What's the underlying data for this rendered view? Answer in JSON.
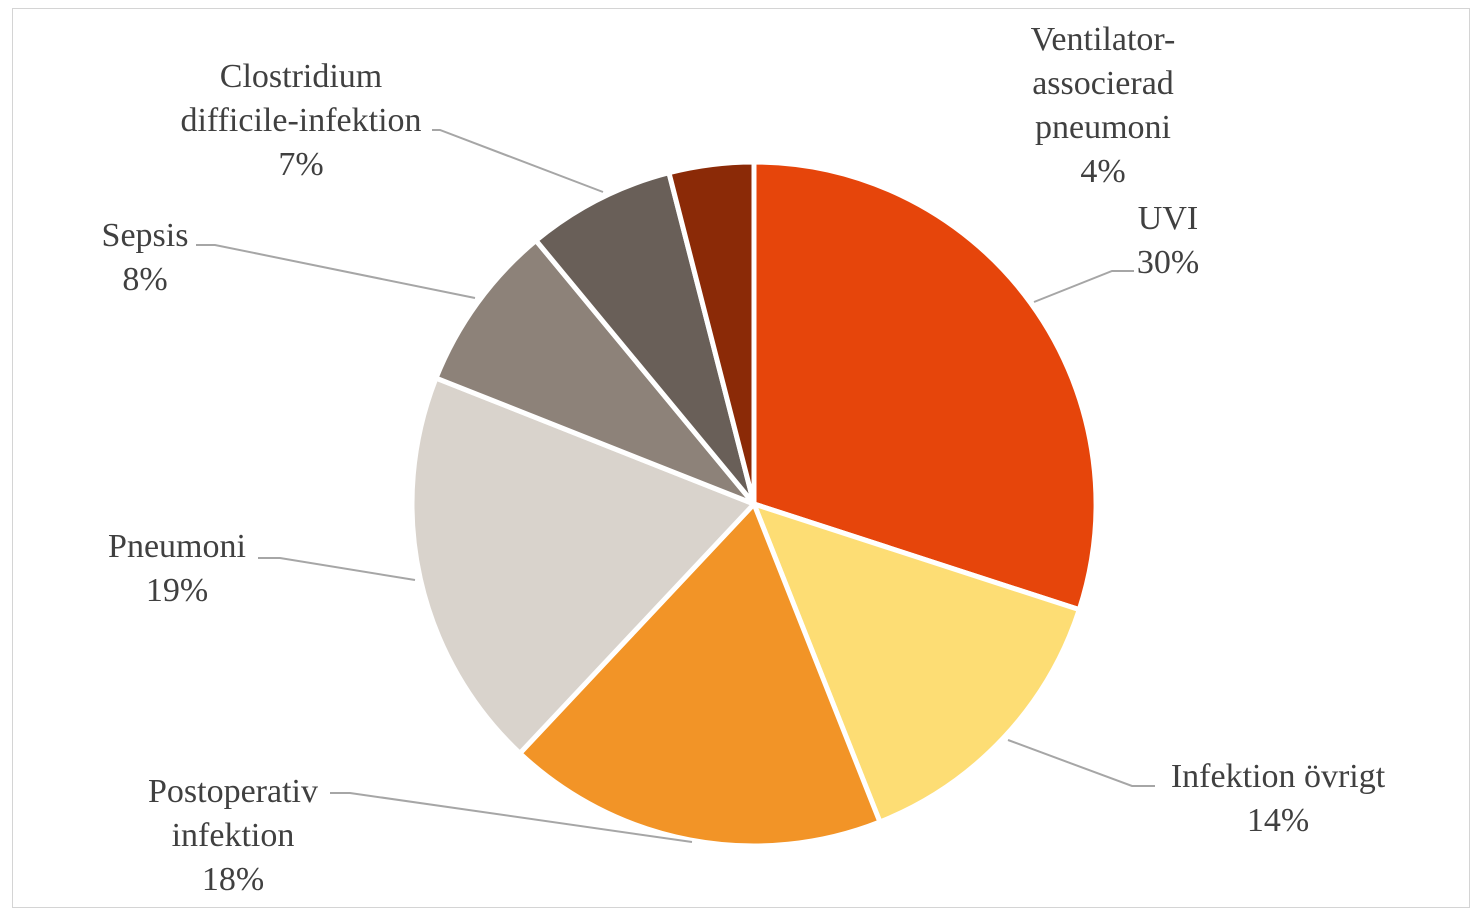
{
  "chart_data": {
    "type": "pie",
    "title": "",
    "slices": [
      {
        "label_lines": [
          "UVI"
        ],
        "percent_label": "30%",
        "value": 30,
        "color": "#E6450B"
      },
      {
        "label_lines": [
          "Infektion övrigt"
        ],
        "percent_label": "14%",
        "value": 14,
        "color": "#FDDD74"
      },
      {
        "label_lines": [
          "Postoperativ",
          "infektion"
        ],
        "percent_label": "18%",
        "value": 18,
        "color": "#F29427"
      },
      {
        "label_lines": [
          "Pneumoni"
        ],
        "percent_label": "19%",
        "value": 19,
        "color": "#D9D3CC"
      },
      {
        "label_lines": [
          "Sepsis"
        ],
        "percent_label": "8%",
        "value": 8,
        "color": "#8D8279"
      },
      {
        "label_lines": [
          "Clostridium",
          "difficile-infektion"
        ],
        "percent_label": "7%",
        "value": 7,
        "color": "#695F58"
      },
      {
        "label_lines": [
          "Ventilator-",
          "associerad",
          "pneumoni"
        ],
        "percent_label": "4%",
        "value": 4,
        "color": "#8B2A07"
      }
    ],
    "start_angle_deg": 0,
    "direction": "clockwise",
    "legend": "none",
    "data_labels": "outside with leader lines"
  }
}
